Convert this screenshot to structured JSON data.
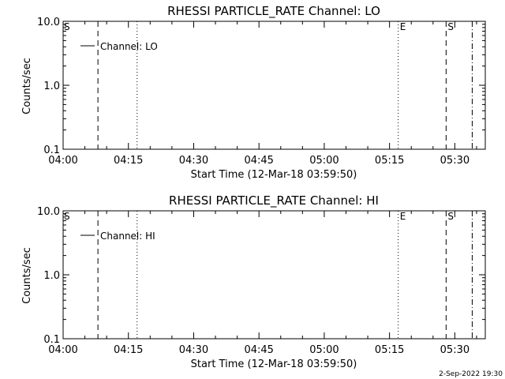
{
  "chart_data": [
    {
      "type": "line",
      "title": "RHESSI PARTICLE_RATE Channel: LO",
      "xlabel": "Start Time (12-Mar-18 03:59:50)",
      "ylabel": "Counts/sec",
      "y_scale": "log",
      "ylim": [
        0.1,
        10.0
      ],
      "xlim": [
        "04:00",
        "05:37"
      ],
      "x_ticks": [
        "04:00",
        "04:15",
        "04:30",
        "04:45",
        "05:00",
        "05:15",
        "05:30"
      ],
      "y_ticks": [
        "0.1",
        "1.0",
        "10.0"
      ],
      "legend": {
        "position": "top-left",
        "entries": [
          "Channel: LO"
        ]
      },
      "series": [
        {
          "name": "Channel: LO",
          "values": []
        }
      ],
      "markers": [
        {
          "time": "04:08",
          "style": "dashed",
          "label": ""
        },
        {
          "time": "04:17",
          "style": "dotted",
          "label": ""
        },
        {
          "time": "05:17",
          "style": "dotted",
          "label": "E"
        },
        {
          "time": "05:28",
          "style": "dashed",
          "label": "S"
        },
        {
          "time": "05:34",
          "style": "dashdot",
          "label": ""
        }
      ],
      "corner_label": "S"
    },
    {
      "type": "line",
      "title": "RHESSI PARTICLE_RATE Channel: HI",
      "xlabel": "Start Time (12-Mar-18 03:59:50)",
      "ylabel": "Counts/sec",
      "y_scale": "log",
      "ylim": [
        0.1,
        10.0
      ],
      "xlim": [
        "04:00",
        "05:37"
      ],
      "x_ticks": [
        "04:00",
        "04:15",
        "04:30",
        "04:45",
        "05:00",
        "05:15",
        "05:30"
      ],
      "y_ticks": [
        "0.1",
        "1.0",
        "10.0"
      ],
      "legend": {
        "position": "top-left",
        "entries": [
          "Channel: HI"
        ]
      },
      "series": [
        {
          "name": "Channel: HI",
          "values": []
        }
      ],
      "markers": [
        {
          "time": "04:08",
          "style": "dashed",
          "label": ""
        },
        {
          "time": "04:17",
          "style": "dotted",
          "label": ""
        },
        {
          "time": "05:17",
          "style": "dotted",
          "label": "E"
        },
        {
          "time": "05:28",
          "style": "dashed",
          "label": "S"
        },
        {
          "time": "05:34",
          "style": "dashdot",
          "label": ""
        }
      ],
      "corner_label": "S"
    }
  ],
  "footer": {
    "timestamp": "2-Sep-2022 19:30"
  }
}
